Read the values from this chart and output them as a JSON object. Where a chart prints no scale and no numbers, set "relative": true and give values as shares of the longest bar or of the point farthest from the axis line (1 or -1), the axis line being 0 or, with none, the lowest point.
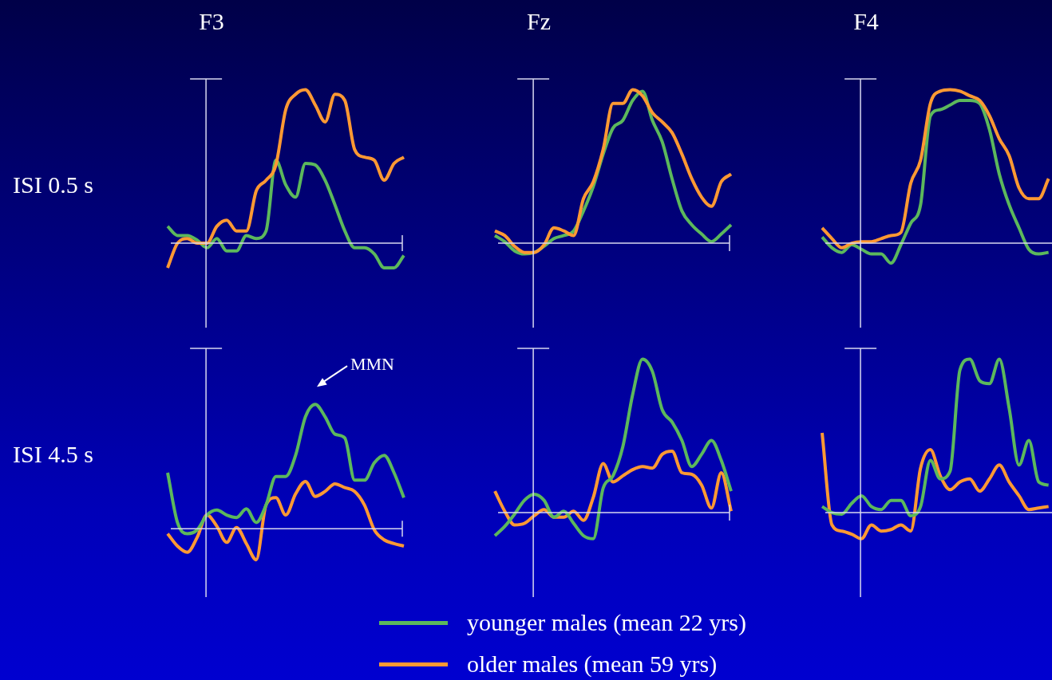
{
  "chart_data": [
    {
      "type": "line",
      "title": "F3",
      "ylabel": "ISI 0.5 s",
      "relative": true,
      "categories": [
        null,
        null,
        null,
        null,
        null,
        null,
        null,
        null,
        null,
        null,
        null,
        null,
        null,
        null,
        null,
        null,
        null,
        null,
        null,
        null,
        null,
        null,
        null,
        null,
        null
      ],
      "series": [
        {
          "color": "#ff9933",
          "values": [
            -0.16,
            0,
            0.03,
            0,
            0,
            0.11,
            0.15,
            0.08,
            0.08,
            0.34,
            0.41,
            0.51,
            0.87,
            0.97,
            1,
            0.9,
            0.79,
            0.97,
            0.93,
            0.61,
            0.56,
            0.54,
            0.41,
            0.52,
            0.56
          ]
        },
        {
          "color": "#5cb85c",
          "values": [
            0.11,
            0.05,
            0.05,
            0.02,
            -0.03,
            0.03,
            -0.05,
            -0.05,
            0.05,
            0.03,
            0.08,
            0.54,
            0.38,
            0.3,
            0.52,
            0.51,
            0.41,
            0.25,
            0.08,
            -0.03,
            -0.03,
            -0.07,
            -0.16,
            -0.16,
            -0.08
          ]
        }
      ]
    },
    {
      "type": "line",
      "title": "Fz",
      "relative": true,
      "categories": [
        null,
        null,
        null,
        null,
        null,
        null,
        null,
        null,
        null,
        null,
        null,
        null,
        null,
        null,
        null,
        null,
        null,
        null,
        null,
        null,
        null,
        null,
        null,
        null,
        null
      ],
      "series": [
        {
          "color": "#ff9933",
          "values": [
            0.08,
            0.05,
            -0.02,
            -0.06,
            -0.06,
            -0.01,
            0.1,
            0.08,
            0.05,
            0.29,
            0.4,
            0.61,
            0.91,
            0.91,
            1,
            0.96,
            0.85,
            0.79,
            0.72,
            0.58,
            0.42,
            0.3,
            0.24,
            0.4,
            0.45
          ]
        },
        {
          "color": "#5cb85c",
          "values": [
            0.05,
            0.01,
            -0.05,
            -0.07,
            -0.06,
            -0.02,
            0.03,
            0.05,
            0.08,
            0.21,
            0.37,
            0.58,
            0.75,
            0.8,
            0.93,
            0.99,
            0.8,
            0.66,
            0.42,
            0.21,
            0.12,
            0.06,
            0.01,
            0.06,
            0.12
          ]
        }
      ]
    },
    {
      "type": "line",
      "title": "F4",
      "relative": true,
      "categories": [
        null,
        null,
        null,
        null,
        null,
        null,
        null,
        null,
        null,
        null,
        null,
        null,
        null,
        null,
        null,
        null,
        null,
        null,
        null,
        null,
        null,
        null,
        null,
        null,
        null
      ],
      "series": [
        {
          "color": "#ff9933",
          "values": [
            0.1,
            0.03,
            -0.03,
            0,
            0.01,
            0.01,
            0.03,
            0.05,
            0.07,
            0.39,
            0.54,
            0.91,
            0.99,
            1,
            0.99,
            0.96,
            0.93,
            0.83,
            0.68,
            0.57,
            0.36,
            0.29,
            0.29,
            0.42,
            null
          ]
        },
        {
          "color": "#5cb85c",
          "values": [
            0.04,
            -0.03,
            -0.06,
            -0.01,
            -0.04,
            -0.07,
            -0.07,
            -0.13,
            -0.01,
            0.13,
            0.25,
            0.83,
            0.87,
            0.9,
            0.93,
            0.93,
            0.91,
            0.74,
            0.45,
            0.25,
            0.1,
            -0.04,
            -0.07,
            -0.06,
            null
          ]
        }
      ]
    },
    {
      "type": "line",
      "ylabel": "ISI 4.5 s",
      "relative": true,
      "annotations": [
        "MMN"
      ],
      "categories": [
        null,
        null,
        null,
        null,
        null,
        null,
        null,
        null,
        null,
        null,
        null,
        null,
        null,
        null,
        null,
        null,
        null,
        null,
        null,
        null,
        null,
        null,
        null,
        null,
        null
      ],
      "series": [
        {
          "color": "#5cb85c",
          "values": [
            0.45,
            0.05,
            -0.04,
            -0.01,
            0.11,
            0.15,
            0.11,
            0.09,
            0.16,
            0.05,
            0.19,
            0.42,
            0.42,
            0.59,
            0.9,
            1,
            0.9,
            0.76,
            0.73,
            0.39,
            0.39,
            0.53,
            0.59,
            0.45,
            0.25
          ]
        },
        {
          "color": "#ff9933",
          "values": [
            -0.04,
            -0.14,
            -0.19,
            -0.07,
            0.11,
            0.02,
            -0.11,
            0.01,
            -0.12,
            -0.25,
            0.19,
            0.25,
            0.11,
            0.28,
            0.38,
            0.26,
            0.3,
            0.36,
            0.33,
            0.3,
            0.19,
            -0.01,
            -0.09,
            -0.12,
            -0.14
          ]
        }
      ]
    },
    {
      "type": "line",
      "relative": true,
      "legend": "bottom",
      "categories": [
        null,
        null,
        null,
        null,
        null,
        null,
        null,
        null,
        null,
        null,
        null,
        null,
        null,
        null,
        null,
        null,
        null,
        null,
        null,
        null,
        null,
        null,
        null,
        null,
        null
      ],
      "series": [
        {
          "name": "younger males (mean 22 yrs)",
          "color": "#5cb85c",
          "values": [
            -0.15,
            -0.09,
            -0.01,
            0.08,
            0.12,
            0.08,
            -0.03,
            0.01,
            -0.07,
            -0.15,
            -0.17,
            0.16,
            0.24,
            0.43,
            0.77,
            1,
            0.92,
            0.67,
            0.59,
            0.47,
            0.3,
            0.38,
            0.47,
            0.34,
            0.14
          ]
        },
        {
          "name": "older males (mean 59 yrs)",
          "color": "#ff9933",
          "values": [
            0.14,
            0.01,
            -0.08,
            -0.07,
            -0.02,
            0.02,
            -0.03,
            -0.03,
            0.01,
            -0.05,
            0.1,
            0.32,
            0.2,
            0.24,
            0.28,
            0.3,
            0.29,
            0.38,
            0.4,
            0.26,
            0.25,
            0.18,
            0.03,
            0.26,
            0.01
          ]
        }
      ]
    },
    {
      "type": "line",
      "relative": true,
      "categories": [
        null,
        null,
        null,
        null,
        null,
        null,
        null,
        null,
        null,
        null,
        null,
        null,
        null,
        null,
        null,
        null,
        null,
        null,
        null,
        null,
        null,
        null,
        null,
        null,
        null
      ],
      "series": [
        {
          "color": "#5cb85c",
          "values": [
            0.04,
            0,
            -0.01,
            0.06,
            0.11,
            0.04,
            0.02,
            0.08,
            0.08,
            -0.02,
            0.04,
            0.34,
            0.22,
            0.27,
            0.93,
            1,
            0.86,
            0.84,
            1,
            0.68,
            0.31,
            0.47,
            0.2,
            0.18,
            null
          ]
        },
        {
          "color": "#ff9933",
          "values": [
            0.52,
            -0.08,
            -0.12,
            -0.14,
            -0.17,
            -0.08,
            -0.12,
            -0.11,
            -0.08,
            -0.12,
            0.29,
            0.41,
            0.24,
            0.15,
            0.2,
            0.22,
            0.14,
            0.22,
            0.31,
            0.2,
            0.11,
            0.02,
            0.03,
            0.04,
            null
          ]
        }
      ]
    }
  ]
}
